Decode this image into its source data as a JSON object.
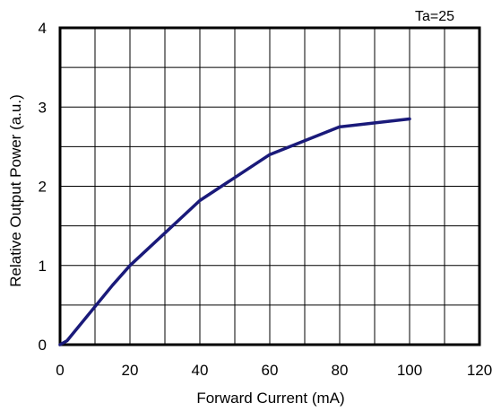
{
  "chart_data": {
    "type": "line",
    "annotation": "Ta=25",
    "xlabel": "Forward Current (mA)",
    "ylabel": "Relative Output Power (a.u.)",
    "xlim": [
      0,
      120
    ],
    "ylim": [
      0,
      4
    ],
    "x_ticks": [
      0,
      20,
      40,
      60,
      80,
      100,
      120
    ],
    "x_tick_labels": [
      "0",
      "20",
      "40",
      "60",
      "80",
      "100",
      "120"
    ],
    "y_ticks": [
      0,
      1,
      2,
      3,
      4
    ],
    "y_tick_labels": [
      "0",
      "1",
      "2",
      "3",
      "4"
    ],
    "x_minor_step": 10,
    "y_minor_step": 0.5,
    "grid": true,
    "series": [
      {
        "color": "#1a1a7a",
        "x": [
          0,
          2,
          15,
          20,
          40,
          60,
          80,
          100
        ],
        "y": [
          0,
          0.05,
          0.75,
          1.0,
          1.82,
          2.4,
          2.75,
          2.85
        ]
      }
    ]
  }
}
